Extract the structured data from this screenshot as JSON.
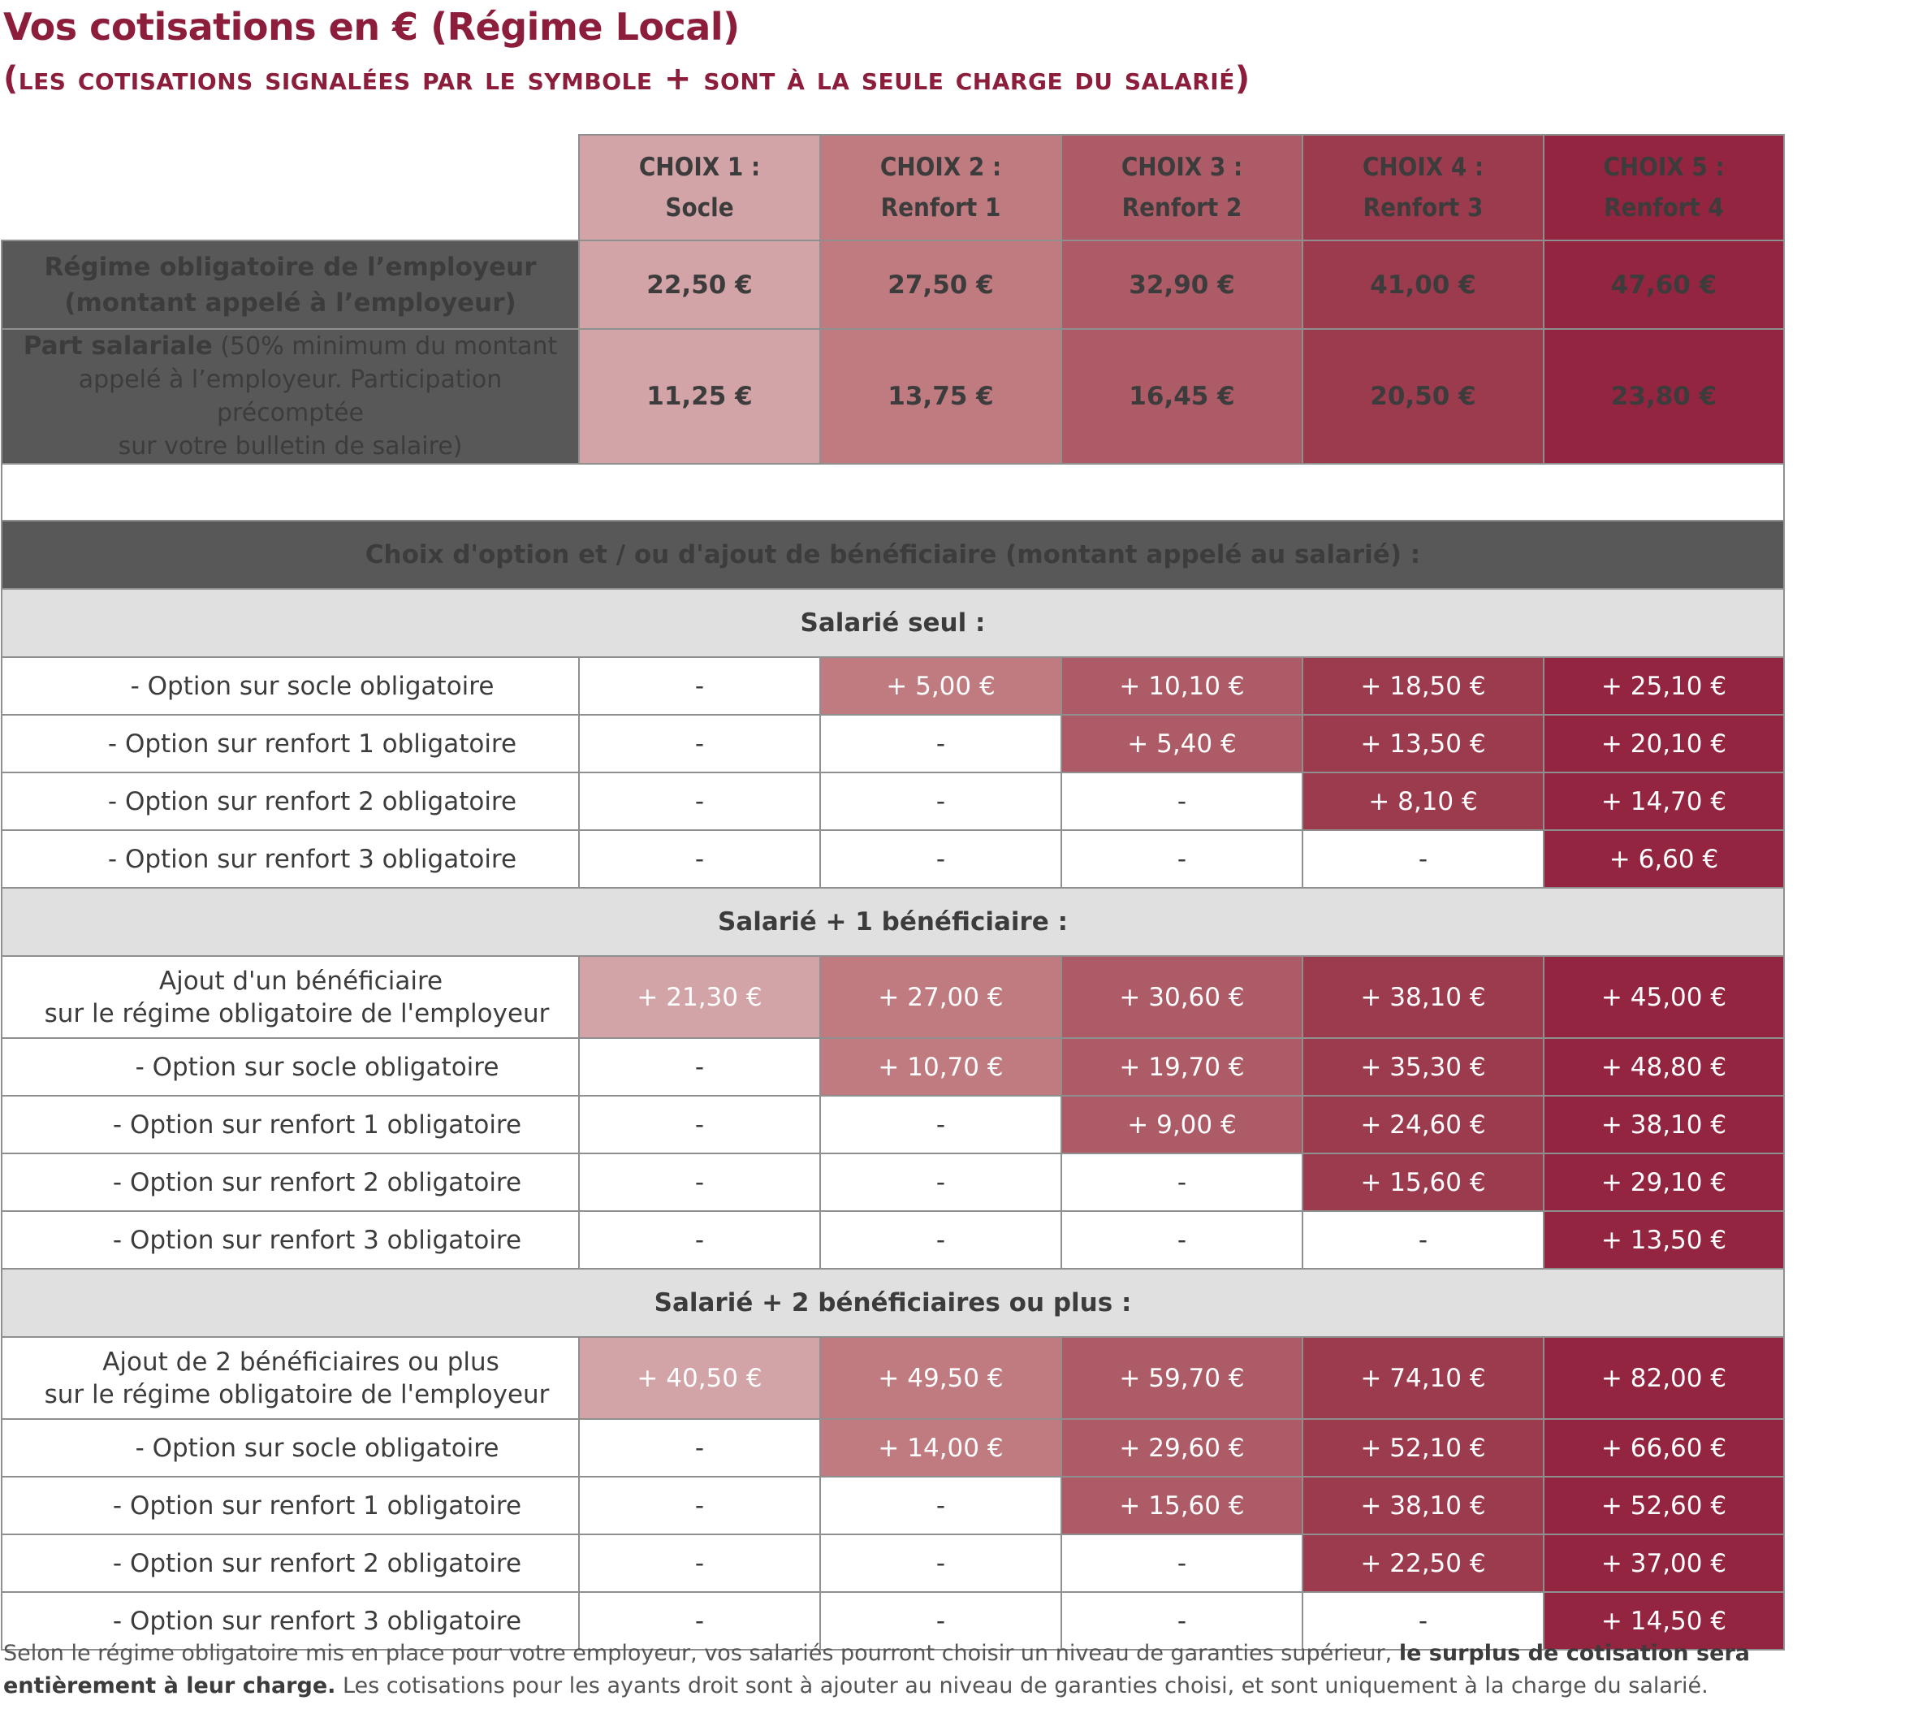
{
  "title": "Vos cotisations en € (Régime Local)",
  "subtitle": "(les cotisations signalées par le symbole + sont à la seule charge du salarié)",
  "headers": [
    {
      "line1": "CHOIX 1 :",
      "line2": "Socle"
    },
    {
      "line1": "CHOIX 2 :",
      "line2": "Renfort 1"
    },
    {
      "line1": "CHOIX 3 :",
      "line2": "Renfort 2"
    },
    {
      "line1": "CHOIX 4 :",
      "line2": "Renfort 3"
    },
    {
      "line1": "CHOIX 5 :",
      "line2": "Renfort 4"
    }
  ],
  "colors": {
    "brand": "#8c1e3c",
    "choix1": "#d2a3a7",
    "choix2": "#bf7b80",
    "choix3": "#ad5b66",
    "choix4": "#9c3b4e",
    "choix5": "#932540",
    "dark_gray": "#585858",
    "light_gray": "#e0e0e0"
  },
  "regime": {
    "label_line1": "Régime obligatoire de l’employeur",
    "label_line2": "(montant appelé à l’employeur)",
    "values": [
      "22,50 €",
      "27,50 €",
      "32,90 €",
      "41,00 €",
      "47,60 €"
    ]
  },
  "part_salariale": {
    "label_bold": "Part salariale",
    "label_small1": " (50% minimum du montant",
    "label_small2": "appelé à l’employeur. Participation précomptée",
    "label_small3": "sur votre bulletin de salaire)",
    "values": [
      "11,25 €",
      "13,75 €",
      "16,45 €",
      "20,50 €",
      "23,80 €"
    ]
  },
  "options_heading": "Choix d'option et / ou d'ajout de bénéficiaire (montant appelé au salarié) :",
  "sections": [
    {
      "title": "Salarié seul :",
      "rows": [
        {
          "label": "- Option sur socle obligatoire",
          "values": [
            "-",
            "+ 5,00 €",
            "+ 10,10 €",
            "+ 18,50 €",
            "+ 25,10 €"
          ]
        },
        {
          "label": "- Option sur renfort 1 obligatoire",
          "values": [
            "-",
            "-",
            "+ 5,40 €",
            "+ 13,50 €",
            "+ 20,10 €"
          ]
        },
        {
          "label": "- Option sur renfort 2 obligatoire",
          "values": [
            "-",
            "-",
            "-",
            "+ 8,10 €",
            "+ 14,70 €"
          ]
        },
        {
          "label": "- Option sur renfort 3 obligatoire",
          "values": [
            "-",
            "-",
            "-",
            "-",
            "+ 6,60 €"
          ]
        }
      ]
    },
    {
      "title": "Salarié + 1 bénéficiaire :",
      "ajout": {
        "line1": "Ajout d'un bénéficiaire",
        "line2": "sur le régime obligatoire de l'employeur",
        "values": [
          "+ 21,30 €",
          "+ 27,00 €",
          "+ 30,60 €",
          "+ 38,10 €",
          "+ 45,00 €"
        ]
      },
      "rows": [
        {
          "label": "- Option sur socle obligatoire",
          "values": [
            "-",
            "+ 10,70 €",
            "+ 19,70 €",
            "+ 35,30 €",
            "+ 48,80 €"
          ]
        },
        {
          "label": "- Option sur renfort 1 obligatoire",
          "values": [
            "-",
            "-",
            "+ 9,00 €",
            "+ 24,60 €",
            "+ 38,10 €"
          ]
        },
        {
          "label": "- Option sur renfort 2 obligatoire",
          "values": [
            "-",
            "-",
            "-",
            "+ 15,60 €",
            "+ 29,10 €"
          ]
        },
        {
          "label": "- Option sur renfort 3 obligatoire",
          "values": [
            "-",
            "-",
            "-",
            "-",
            "+ 13,50 €"
          ]
        }
      ]
    },
    {
      "title": "Salarié + 2 bénéficiaires ou plus :",
      "ajout": {
        "line1": "Ajout de 2 bénéficiaires ou plus",
        "line2": "sur le régime obligatoire de l'employeur",
        "values": [
          "+ 40,50 €",
          "+ 49,50 €",
          "+ 59,70 €",
          "+ 74,10 €",
          "+ 82,00 €"
        ]
      },
      "rows": [
        {
          "label": "- Option sur socle obligatoire",
          "values": [
            "-",
            "+ 14,00 €",
            "+ 29,60 €",
            "+ 52,10 €",
            "+ 66,60 €"
          ]
        },
        {
          "label": "- Option sur renfort 1 obligatoire",
          "values": [
            "-",
            "-",
            "+ 15,60 €",
            "+ 38,10 €",
            "+ 52,60 €"
          ]
        },
        {
          "label": "- Option sur renfort 2 obligatoire",
          "values": [
            "-",
            "-",
            "-",
            "+ 22,50 €",
            "+ 37,00 €"
          ]
        },
        {
          "label": "- Option sur renfort 3 obligatoire",
          "values": [
            "-",
            "-",
            "-",
            "-",
            "+ 14,50 €"
          ]
        }
      ]
    }
  ],
  "footnote": {
    "part1": "Selon le régime obligatoire mis en place pour votre employeur, vos salariés pourront choisir un niveau de garanties supérieur, ",
    "bold": "le surplus de cotisation sera entièrement à leur charge.",
    "part2": " Les cotisations pour les ayants droit sont à ajouter au niveau de garanties choisi, et sont uniquement à la charge du salarié."
  }
}
